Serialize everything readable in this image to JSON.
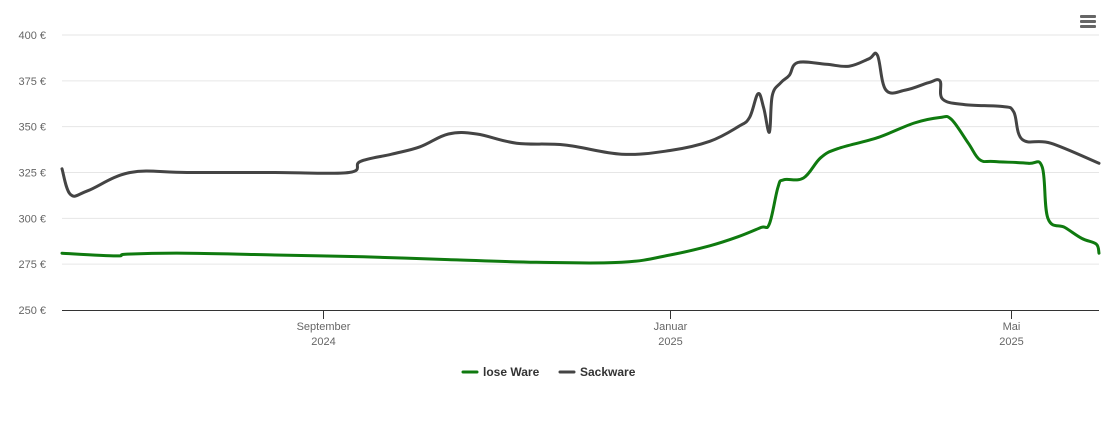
{
  "menu": {
    "icon": "hamburger-menu-icon"
  },
  "chart_data": {
    "type": "line",
    "title": "",
    "xlabel": "",
    "ylabel": "",
    "ylim": [
      250,
      400
    ],
    "y_ticks": [
      {
        "value": 250,
        "label": "250 €"
      },
      {
        "value": 275,
        "label": "275 €"
      },
      {
        "value": 300,
        "label": "300 €"
      },
      {
        "value": 325,
        "label": "325 €"
      },
      {
        "value": 350,
        "label": "350 €"
      },
      {
        "value": 375,
        "label": "375 €"
      },
      {
        "value": 400,
        "label": "400 €"
      }
    ],
    "xlim": [
      "2024-06-01",
      "2025-06-01"
    ],
    "x_ticks": [
      {
        "date": "2024-09-01",
        "month": "September",
        "year": "2024"
      },
      {
        "date": "2025-01-01",
        "month": "Januar",
        "year": "2025"
      },
      {
        "date": "2025-05-01",
        "month": "Mai",
        "year": "2025"
      }
    ],
    "grid": true,
    "legend": "bottom-center",
    "series": [
      {
        "name": "lose Ware",
        "color": "#0f7a0f",
        "points": [
          [
            "2024-06-01",
            281
          ],
          [
            "2024-06-20",
            279.5
          ],
          [
            "2024-06-24",
            280.5
          ],
          [
            "2024-07-15",
            281
          ],
          [
            "2024-08-15",
            280
          ],
          [
            "2024-09-15",
            279
          ],
          [
            "2024-10-15",
            277.5
          ],
          [
            "2024-11-15",
            276
          ],
          [
            "2024-12-15",
            276
          ],
          [
            "2025-01-01",
            280
          ],
          [
            "2025-01-15",
            285
          ],
          [
            "2025-01-25",
            290
          ],
          [
            "2025-02-02",
            295
          ],
          [
            "2025-02-05",
            297
          ],
          [
            "2025-02-08",
            317
          ],
          [
            "2025-02-10",
            321
          ],
          [
            "2025-02-17",
            322
          ],
          [
            "2025-02-23",
            333
          ],
          [
            "2025-03-01",
            338
          ],
          [
            "2025-03-15",
            344
          ],
          [
            "2025-03-28",
            352
          ],
          [
            "2025-04-06",
            355
          ],
          [
            "2025-04-10",
            354
          ],
          [
            "2025-04-16",
            341
          ],
          [
            "2025-04-20",
            332
          ],
          [
            "2025-04-25",
            331
          ],
          [
            "2025-05-07",
            330
          ],
          [
            "2025-05-12",
            328
          ],
          [
            "2025-05-14",
            300
          ],
          [
            "2025-05-20",
            295
          ],
          [
            "2025-05-26",
            289
          ],
          [
            "2025-05-31",
            286
          ],
          [
            "2025-06-01",
            281
          ]
        ]
      },
      {
        "name": "Sackware",
        "color": "#444444",
        "points": [
          [
            "2024-06-01",
            327
          ],
          [
            "2024-06-04",
            313
          ],
          [
            "2024-06-10",
            315
          ],
          [
            "2024-06-25",
            325
          ],
          [
            "2024-07-15",
            325
          ],
          [
            "2024-08-15",
            325
          ],
          [
            "2024-09-10",
            325
          ],
          [
            "2024-09-14",
            331
          ],
          [
            "2024-09-25",
            335
          ],
          [
            "2024-10-05",
            339
          ],
          [
            "2024-10-15",
            346
          ],
          [
            "2024-10-25",
            346
          ],
          [
            "2024-11-08",
            341
          ],
          [
            "2024-11-25",
            340
          ],
          [
            "2024-12-15",
            335
          ],
          [
            "2025-01-01",
            337
          ],
          [
            "2025-01-15",
            342
          ],
          [
            "2025-01-25",
            350
          ],
          [
            "2025-01-29",
            355
          ],
          [
            "2025-02-01",
            368
          ],
          [
            "2025-02-03",
            360
          ],
          [
            "2025-02-05",
            347
          ],
          [
            "2025-02-06",
            367
          ],
          [
            "2025-02-09",
            374
          ],
          [
            "2025-02-12",
            378
          ],
          [
            "2025-02-15",
            385
          ],
          [
            "2025-02-25",
            384
          ],
          [
            "2025-03-05",
            383
          ],
          [
            "2025-03-12",
            387
          ],
          [
            "2025-03-15",
            389
          ],
          [
            "2025-03-18",
            370
          ],
          [
            "2025-03-25",
            370
          ],
          [
            "2025-04-02",
            374
          ],
          [
            "2025-04-06",
            375
          ],
          [
            "2025-04-07",
            365
          ],
          [
            "2025-04-15",
            362
          ],
          [
            "2025-04-28",
            361
          ],
          [
            "2025-05-02",
            358
          ],
          [
            "2025-05-05",
            343
          ],
          [
            "2025-05-15",
            341
          ],
          [
            "2025-06-01",
            330
          ]
        ]
      }
    ]
  }
}
